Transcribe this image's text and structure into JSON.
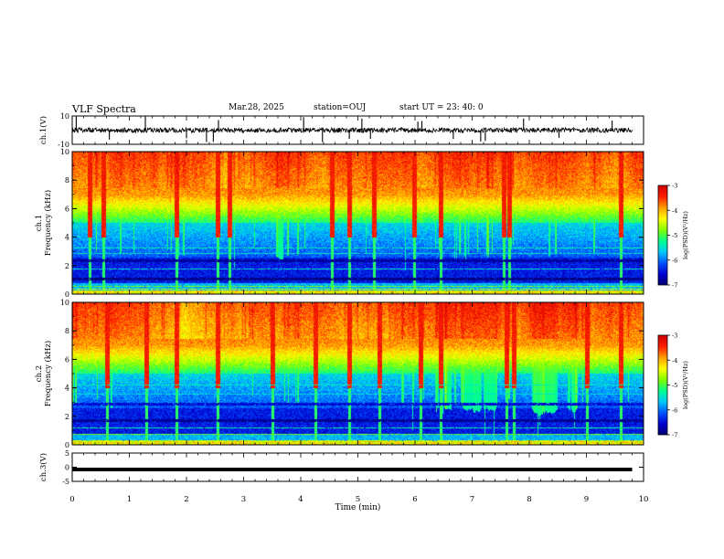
{
  "header": {
    "title": "VLF Spectra",
    "date": "Mar.28, 2025",
    "station": "station=OUJ",
    "start_ut": "start  UT =   23: 40: 0"
  },
  "chart_data": [
    {
      "type": "line",
      "panel": "waveform-ch1",
      "ylabel": "ch.1(V)",
      "ylim": [
        -10,
        10
      ],
      "yticks": [
        "10",
        "-10"
      ],
      "xlim": [
        0,
        9.8
      ],
      "baseline": 0,
      "spikes_min": [
        0.07,
        0.65,
        1.28,
        2.0,
        2.35,
        2.47,
        2.56,
        4.05,
        4.38,
        4.85,
        5.07,
        5.22,
        6.05,
        6.12,
        6.67,
        7.15,
        7.23,
        7.9,
        8.52,
        9.45
      ]
    },
    {
      "type": "heatmap",
      "panel": "spectrogram-ch1",
      "ylabel": "ch.1\nFrequency (kHz)",
      "ylim": [
        0,
        10
      ],
      "yticks": [
        "0",
        "2",
        "4",
        "6",
        "8",
        "10"
      ],
      "xlim": [
        0,
        9.8
      ],
      "colorbar": {
        "label": "log(PSD)(V²/Hz)",
        "range": [
          -7,
          -3
        ],
        "ticks": [
          "-7",
          "-6",
          "-5",
          "-4",
          "-3"
        ]
      }
    },
    {
      "type": "heatmap",
      "panel": "spectrogram-ch2",
      "ylabel": "ch.2\nFrequency (kHz)",
      "ylim": [
        0,
        10
      ],
      "yticks": [
        "0",
        "2",
        "4",
        "6",
        "8",
        "10"
      ],
      "xlim": [
        0,
        9.8
      ],
      "colorbar": {
        "label": "log(PSD)(V²/Hz)",
        "range": [
          -7,
          -3
        ],
        "ticks": [
          "-7",
          "-6",
          "-5",
          "-4",
          "-3"
        ]
      }
    },
    {
      "type": "line",
      "panel": "waveform-ch3",
      "ylabel": "ch.3(V)",
      "ylim": [
        -5,
        5
      ],
      "yticks": [
        "5",
        "0",
        "-5"
      ],
      "xlim": [
        0,
        9.8
      ],
      "baseline": -0.8
    }
  ],
  "xaxis": {
    "label": "Time (min)",
    "ticks": [
      "0",
      "1",
      "2",
      "3",
      "4",
      "5",
      "6",
      "7",
      "8",
      "9",
      "10"
    ],
    "range": [
      0,
      10
    ]
  },
  "colors": {
    "colormap": [
      "#00006e",
      "#0000d0",
      "#0050ff",
      "#00c8ff",
      "#00ff90",
      "#80ff00",
      "#ffff00",
      "#ffa000",
      "#ff2000",
      "#d00000"
    ]
  }
}
